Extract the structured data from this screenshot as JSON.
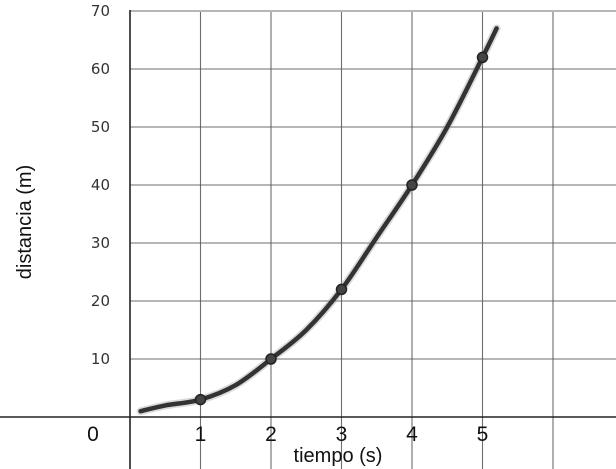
{
  "chart_data": {
    "type": "line",
    "xlabel": "tiempo (s)",
    "ylabel": "distancia (m)",
    "x_ticks": [
      "0",
      "1",
      "2",
      "3",
      "4",
      "5"
    ],
    "y_ticks": [
      "0",
      "10",
      "20",
      "30",
      "40",
      "50",
      "60",
      "70"
    ],
    "xlim": [
      0,
      6.5
    ],
    "ylim": [
      0,
      70
    ],
    "grid": true,
    "series": [
      {
        "x": [
          1,
          2,
          3,
          4,
          5
        ],
        "values": [
          3,
          10,
          22,
          40,
          62
        ]
      }
    ],
    "curve_x": [
      0.15,
      0.5,
      1,
      1.5,
      2,
      2.5,
      3,
      3.5,
      4,
      4.5,
      5,
      5.2
    ],
    "curve_y": [
      1,
      2,
      3,
      5.5,
      10,
      15,
      22,
      31,
      40,
      50,
      62,
      67
    ],
    "colors": {
      "line": "#333333",
      "grid": "#555555",
      "background": "#ffffff"
    }
  }
}
